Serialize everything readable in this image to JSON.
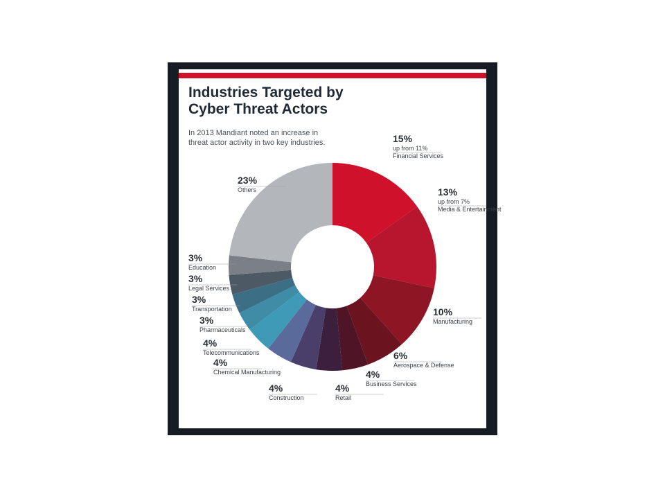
{
  "chart_data": {
    "type": "pie",
    "title": "Industries Targeted by Cyber Threat Actors",
    "subtitle": "In 2013 Mandiant noted an increase in threat actor activity in two key industries.",
    "categories": [
      "Financial Services",
      "Media & Entertainment",
      "Manufacturing",
      "Aerospace & Defense",
      "Business Services",
      "Retail",
      "Construction",
      "Chemical Manufacturing",
      "Telecommunications",
      "Pharmaceuticals",
      "Transportation",
      "Legal Services",
      "Education",
      "Others"
    ],
    "values": [
      15,
      13,
      10,
      6,
      4,
      4,
      4,
      4,
      4,
      3,
      3,
      3,
      3,
      23
    ],
    "value_labels": [
      "15%",
      "13%",
      "10%",
      "6%",
      "4%",
      "4%",
      "4%",
      "4%",
      "4%",
      "3%",
      "3%",
      "3%",
      "3%",
      "23%"
    ],
    "notes": [
      "up from 11%",
      "up from 7%",
      null,
      null,
      null,
      null,
      null,
      null,
      null,
      null,
      null,
      null,
      null,
      null
    ],
    "colors": [
      "#d0112b",
      "#b8152e",
      "#8e1624",
      "#6b1420",
      "#4f1426",
      "#3b1f3d",
      "#4a3f6b",
      "#5a6a9a",
      "#3f9ab8",
      "#3f8ca6",
      "#3c6f86",
      "#4d5a66",
      "#7b8087",
      "#b3b7bb"
    ]
  }
}
